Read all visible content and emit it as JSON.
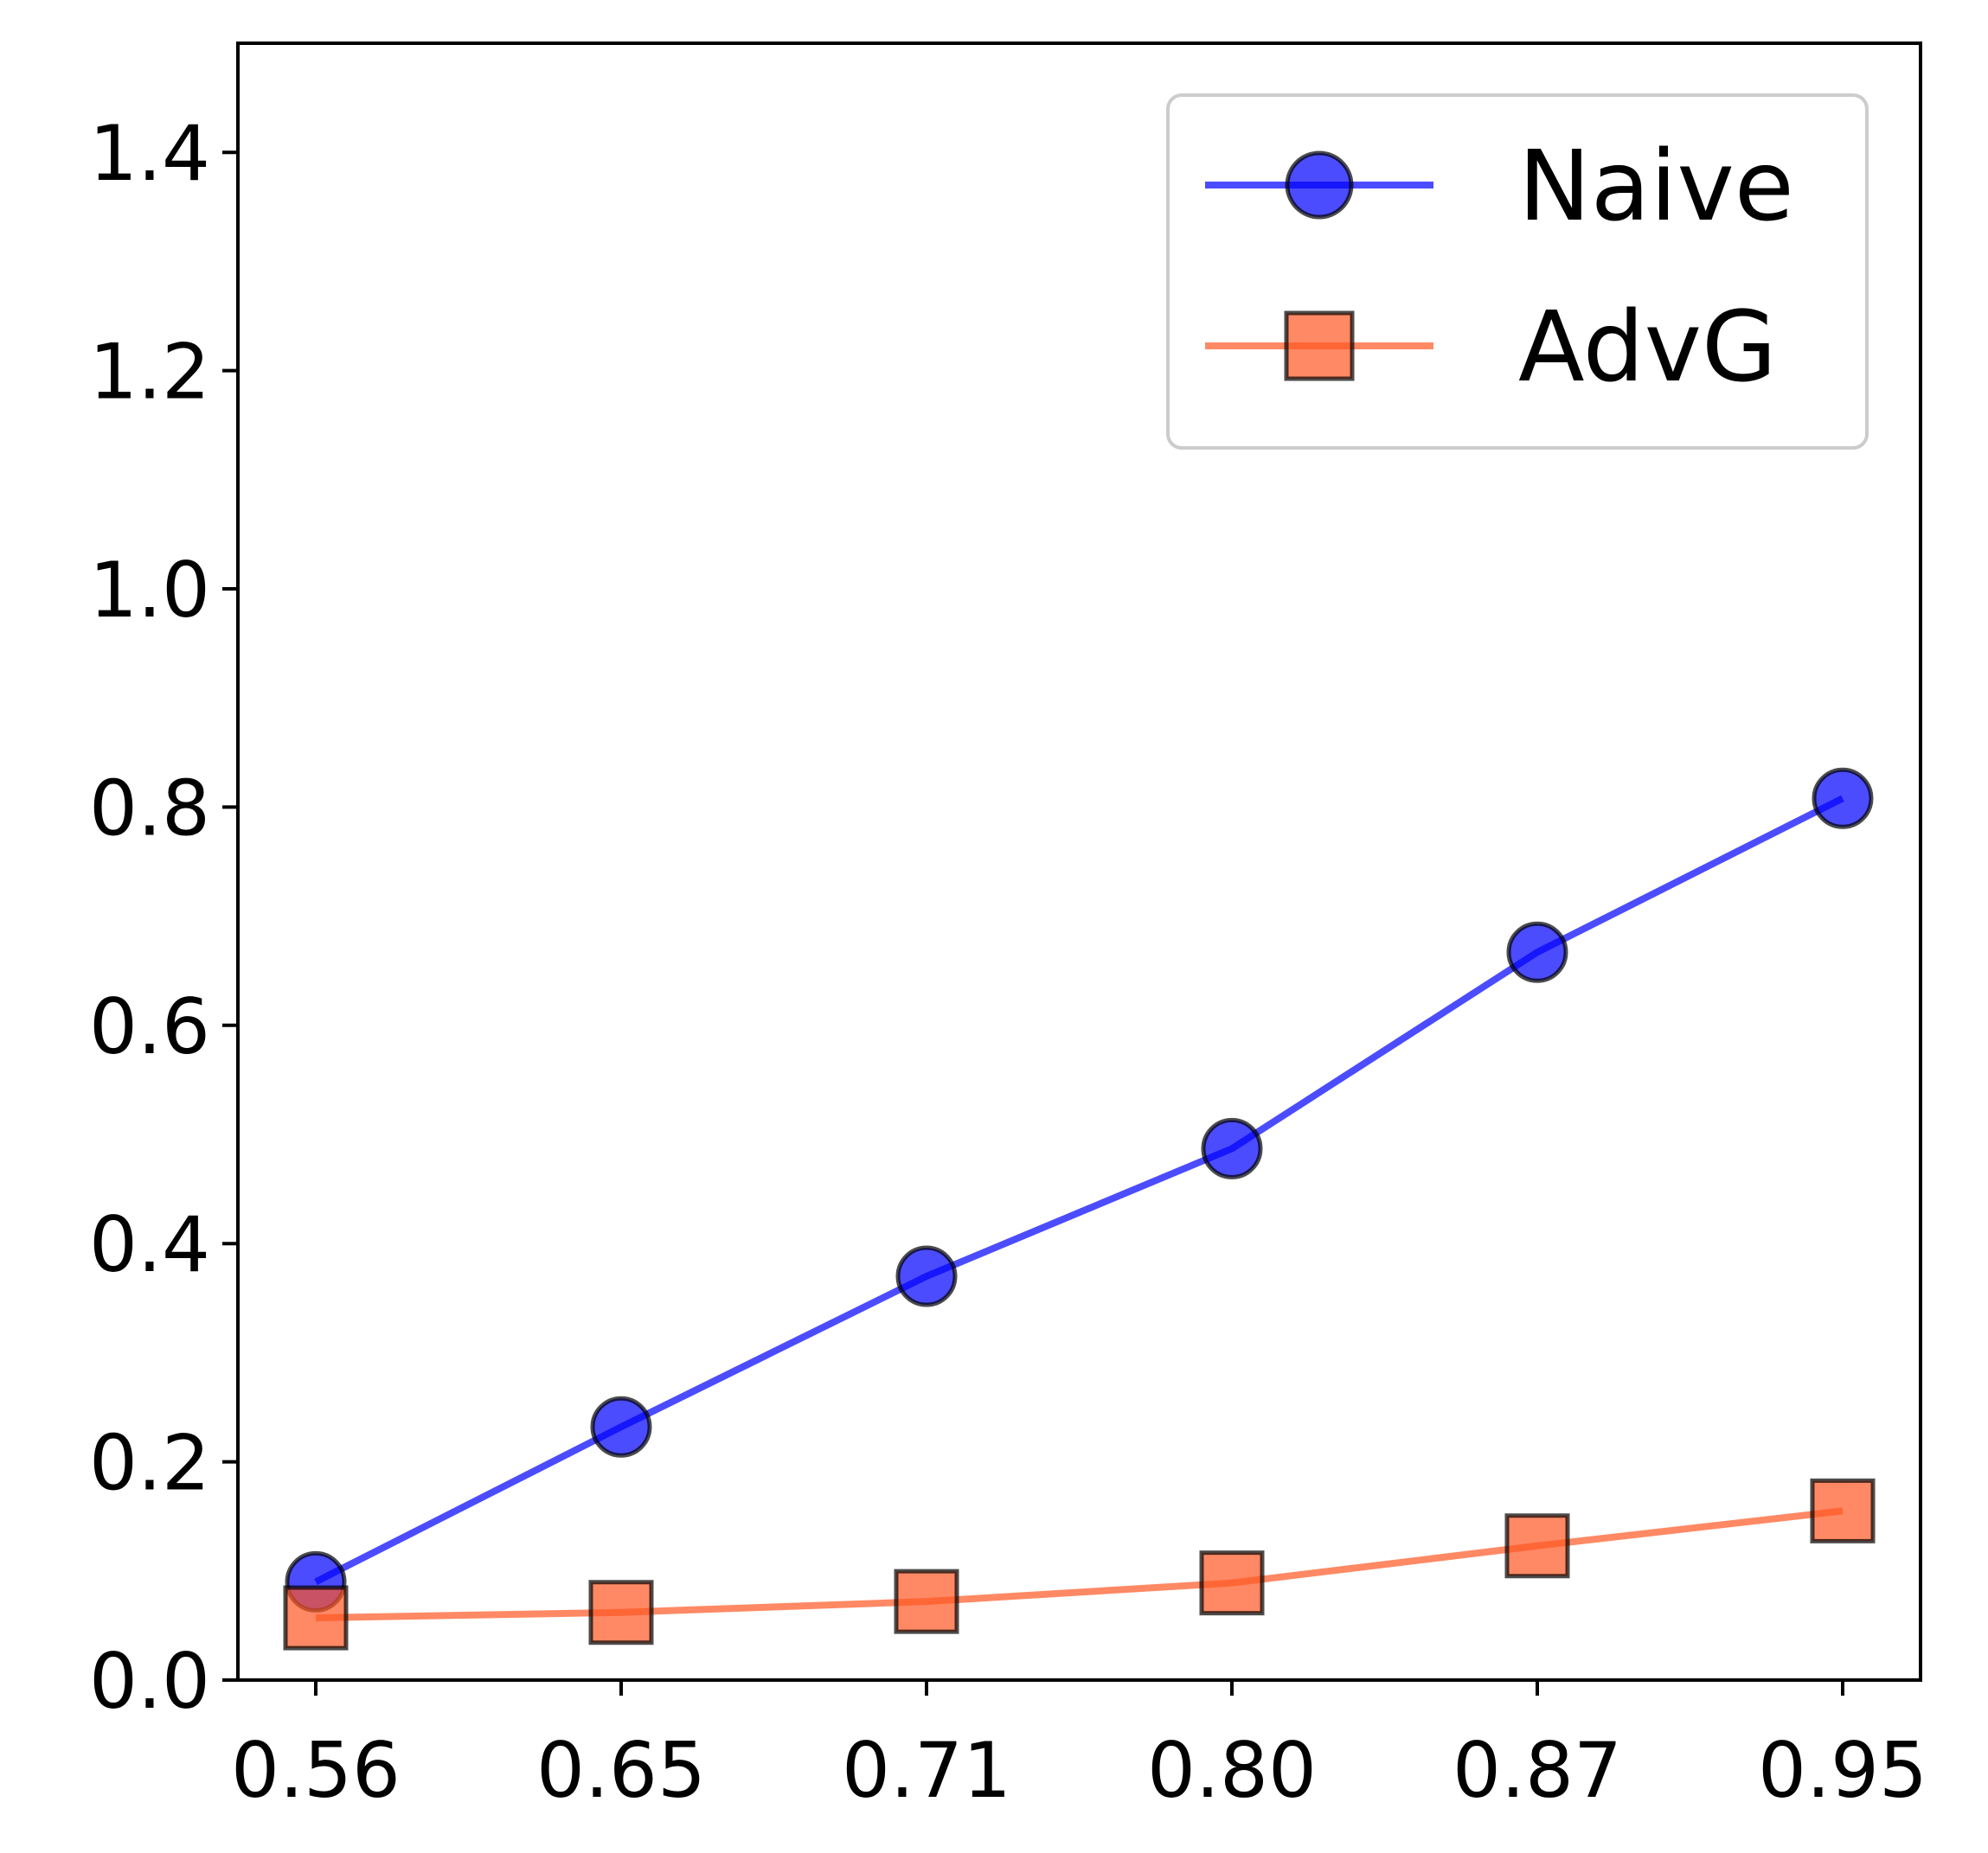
{
  "chart_data": {
    "type": "line",
    "categories": [
      "0.56",
      "0.65",
      "0.71",
      "0.80",
      "0.87",
      "0.95"
    ],
    "series": [
      {
        "name": "Naive",
        "values": [
          0.09,
          0.232,
          0.37,
          0.487,
          0.667,
          0.808
        ],
        "color": "#0000ff",
        "marker": "circle"
      },
      {
        "name": "AdvG",
        "values": [
          0.057,
          0.062,
          0.072,
          0.089,
          0.123,
          0.155
        ],
        "color": "#ff5722",
        "marker": "square"
      }
    ],
    "yticks": [
      "0.0",
      "0.2",
      "0.4",
      "0.6",
      "0.8",
      "1.0",
      "1.2",
      "1.4"
    ],
    "ylim": [
      0,
      1.5
    ],
    "grid": false,
    "legend_position": "top-right",
    "title": "",
    "xlabel": "",
    "ylabel": ""
  }
}
